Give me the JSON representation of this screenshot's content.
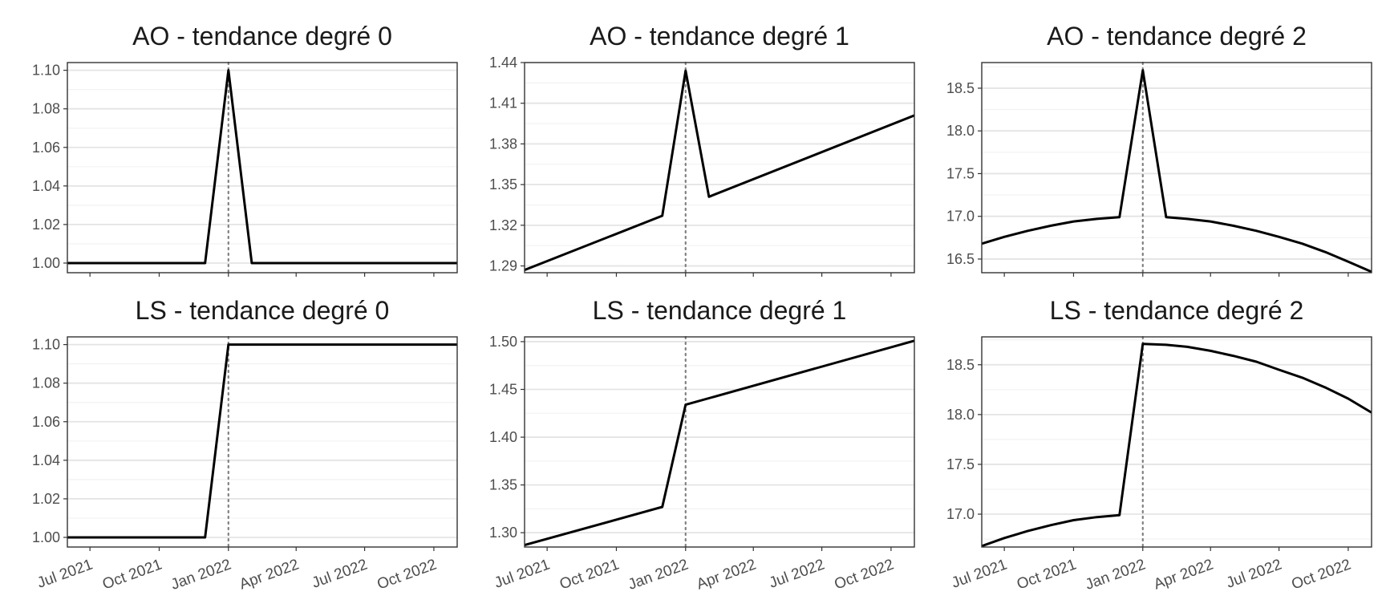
{
  "chart_data": [
    {
      "type": "line",
      "title": "AO - tendance degré 0",
      "x_dates": [
        "2021-06-01",
        "2021-07-01",
        "2021-08-01",
        "2021-09-01",
        "2021-10-01",
        "2021-11-01",
        "2021-12-01",
        "2022-01-01",
        "2022-02-01",
        "2022-03-01",
        "2022-04-01",
        "2022-05-01",
        "2022-06-01",
        "2022-07-01",
        "2022-08-01",
        "2022-09-01",
        "2022-10-01",
        "2022-11-01"
      ],
      "values": [
        1.0,
        1.0,
        1.0,
        1.0,
        1.0,
        1.0,
        1.0,
        1.1,
        1.0,
        1.0,
        1.0,
        1.0,
        1.0,
        1.0,
        1.0,
        1.0,
        1.0,
        1.0
      ],
      "ylim": [
        0.995,
        1.104
      ],
      "y_ticks": [
        "1.00",
        "1.02",
        "1.04",
        "1.06",
        "1.08",
        "1.10"
      ],
      "vline": "2022-01-01",
      "grid": true
    },
    {
      "type": "line",
      "title": "AO - tendance degré 1",
      "x_dates": [
        "2021-06-01",
        "2021-12-01",
        "2022-01-01",
        "2022-02-01",
        "2022-11-01"
      ],
      "values": [
        1.287,
        1.327,
        1.434,
        1.341,
        1.401
      ],
      "ylim": [
        1.285,
        1.44
      ],
      "y_ticks": [
        "1.29",
        "1.32",
        "1.35",
        "1.38",
        "1.41",
        "1.44"
      ],
      "vline": "2022-01-01",
      "grid": true
    },
    {
      "type": "line",
      "title": "AO - tendance degré 2",
      "x_dates": [
        "2021-06-01",
        "2021-07-01",
        "2021-08-01",
        "2021-09-01",
        "2021-10-01",
        "2021-11-01",
        "2021-12-01",
        "2022-01-01",
        "2022-02-01",
        "2022-03-01",
        "2022-04-01",
        "2022-05-01",
        "2022-06-01",
        "2022-07-01",
        "2022-08-01",
        "2022-09-01",
        "2022-10-01",
        "2022-11-01"
      ],
      "values": [
        16.68,
        16.76,
        16.83,
        16.89,
        16.94,
        16.97,
        16.99,
        18.71,
        16.99,
        16.97,
        16.94,
        16.89,
        16.83,
        16.76,
        16.68,
        16.58,
        16.47,
        16.35
      ],
      "ylim": [
        16.34,
        18.8
      ],
      "y_ticks": [
        "16.5",
        "17.0",
        "17.5",
        "18.0",
        "18.5"
      ],
      "vline": "2022-01-01",
      "grid": true
    },
    {
      "type": "line",
      "title": "LS - tendance degré 0",
      "x_dates": [
        "2021-06-01",
        "2021-12-01",
        "2022-01-01",
        "2022-11-01"
      ],
      "values": [
        1.0,
        1.0,
        1.1,
        1.1
      ],
      "ylim": [
        0.995,
        1.104
      ],
      "y_ticks": [
        "1.00",
        "1.02",
        "1.04",
        "1.06",
        "1.08",
        "1.10"
      ],
      "vline": "2022-01-01",
      "grid": true
    },
    {
      "type": "line",
      "title": "LS - tendance degré 1",
      "x_dates": [
        "2021-06-01",
        "2021-12-01",
        "2022-01-01",
        "2022-11-01"
      ],
      "values": [
        1.287,
        1.327,
        1.434,
        1.501
      ],
      "ylim": [
        1.285,
        1.505
      ],
      "y_ticks": [
        "1.30",
        "1.35",
        "1.40",
        "1.45",
        "1.50"
      ],
      "vline": "2022-01-01",
      "grid": true
    },
    {
      "type": "line",
      "title": "LS - tendance degré 2",
      "x_dates": [
        "2021-06-01",
        "2021-07-01",
        "2021-08-01",
        "2021-09-01",
        "2021-10-01",
        "2021-11-01",
        "2021-12-01",
        "2022-01-01",
        "2022-02-01",
        "2022-03-01",
        "2022-04-01",
        "2022-05-01",
        "2022-06-01",
        "2022-07-01",
        "2022-08-01",
        "2022-09-01",
        "2022-10-01",
        "2022-11-01"
      ],
      "values": [
        16.68,
        16.76,
        16.83,
        16.89,
        16.94,
        16.97,
        16.99,
        18.71,
        18.7,
        18.68,
        18.64,
        18.59,
        18.53,
        18.45,
        18.37,
        18.27,
        18.16,
        18.02
      ],
      "ylim": [
        16.67,
        18.78
      ],
      "y_ticks": [
        "17.0",
        "17.5",
        "18.0",
        "18.5"
      ],
      "vline": "2022-01-01",
      "grid": true
    }
  ],
  "x_axis": {
    "ticks": [
      {
        "date": "2021-07-01",
        "label": "Jul 2021"
      },
      {
        "date": "2021-10-01",
        "label": "Oct 2021"
      },
      {
        "date": "2022-01-01",
        "label": "Jan 2022"
      },
      {
        "date": "2022-04-01",
        "label": "Apr 2022"
      },
      {
        "date": "2022-07-01",
        "label": "Jul 2022"
      },
      {
        "date": "2022-10-01",
        "label": "Oct 2022"
      }
    ],
    "xlim": [
      "2021-06-01",
      "2022-11-01"
    ]
  },
  "colors": {
    "line": "#000000",
    "vline": "#808080",
    "grid_major": "#e4e4e4",
    "grid_minor": "#f2f2f2",
    "frame": "#333333",
    "text": "#4d4d4d"
  }
}
